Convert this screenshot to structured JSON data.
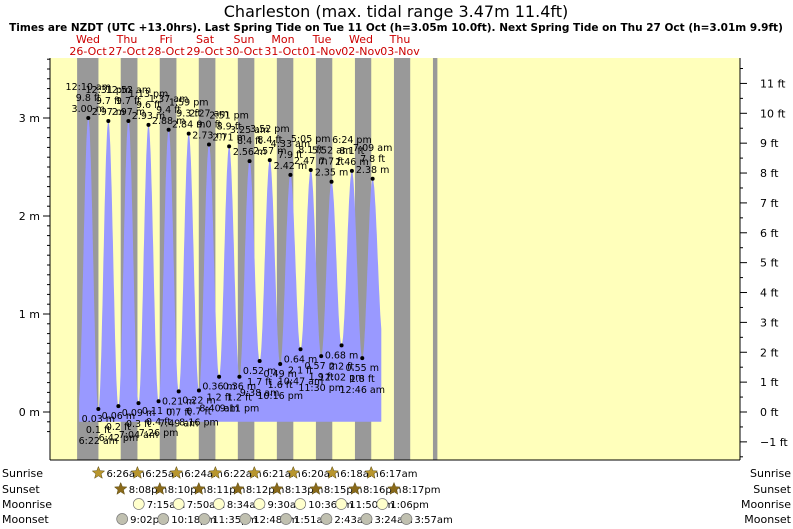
{
  "chart_data": {
    "type": "area",
    "title": "Charleston (max. tidal range 3.47m 11.4ft)",
    "subtitle": "Times are NZDT (UTC +13.0hrs). Last Spring Tide on Tue 11 Oct (h=3.05m 10.0ft). Next Spring Tide on Thu 27 Oct (h=3.01m 9.9ft)",
    "y_m_ticks": [
      "0 m",
      "1 m",
      "2 m",
      "3 m"
    ],
    "y_m_values": [
      0,
      1,
      2,
      3
    ],
    "y_ft_ticks": [
      "−1 ft",
      "0 ft",
      "1 ft",
      "2 ft",
      "3 ft",
      "4 ft",
      "5 ft",
      "6 ft",
      "7 ft",
      "8 ft",
      "9 ft",
      "10 ft",
      "11 ft"
    ],
    "y_ft_values": [
      -1,
      0,
      1,
      2,
      3,
      4,
      5,
      6,
      7,
      8,
      9,
      10,
      11
    ],
    "ylim_m": [
      -0.25,
      3.65
    ],
    "days": [
      {
        "day": "Wed",
        "date": "26-Oct",
        "t": 0
      },
      {
        "day": "Thu",
        "date": "27-Oct",
        "t": 24
      },
      {
        "day": "Fri",
        "date": "28-Oct",
        "t": 48
      },
      {
        "day": "Sat",
        "date": "29-Oct",
        "t": 72
      },
      {
        "day": "Sun",
        "date": "30-Oct",
        "t": 96
      },
      {
        "day": "Mon",
        "date": "31-Oct",
        "t": 120
      },
      {
        "day": "Tue",
        "date": "01-Nov",
        "t": 144
      },
      {
        "day": "Wed",
        "date": "02-Nov",
        "t": 168
      },
      {
        "day": "Thu",
        "date": "03-Nov",
        "t": 192
      }
    ],
    "night_bands_hours": [
      [
        -6.7,
        6.43
      ],
      [
        20.13,
        30.43
      ],
      [
        44.15,
        54.42
      ],
      [
        68.17,
        78.4
      ],
      [
        92.2,
        102.37
      ],
      [
        116.22,
        126.35
      ],
      [
        140.25,
        150.33
      ],
      [
        164.27,
        174.3
      ],
      [
        188.28,
        198.28
      ],
      [
        212.28,
        215
      ]
    ],
    "tides": [
      {
        "t": -5.95,
        "h": 0.1,
        "dot": false
      },
      {
        "t": 0.17,
        "h": 3.0,
        "dot": true,
        "time": "12:10 am",
        "ft": "9.8 ft",
        "m": "3.00 m",
        "kind": "high"
      },
      {
        "t": 6.37,
        "h": 0.03,
        "dot": true,
        "time": "6:22 am",
        "ft": "0.1 ft",
        "m": "0.03 m",
        "kind": "low"
      },
      {
        "t": 12.52,
        "h": 2.97,
        "dot": true,
        "time": "12:31 pm",
        "ft": "9.7 ft",
        "m": "2.97 m",
        "kind": "high"
      },
      {
        "t": 18.7,
        "h": 0.06,
        "dot": true,
        "time": "6:42 pm",
        "ft": "0.2 ft",
        "m": "0.06 m",
        "kind": "low"
      },
      {
        "t": 24.87,
        "h": 2.97,
        "dot": true,
        "time": "12:52 am",
        "ft": "9.7 ft",
        "m": "2.97 m",
        "kind": "high"
      },
      {
        "t": 31.07,
        "h": 0.09,
        "dot": true,
        "time": "7:04 am",
        "ft": "0.3 ft",
        "m": "0.09 m",
        "kind": "low"
      },
      {
        "t": 37.22,
        "h": 2.93,
        "dot": true,
        "time": "1:13 pm",
        "ft": "9.6 ft",
        "m": "2.93 m",
        "kind": "high"
      },
      {
        "t": 43.43,
        "h": 0.11,
        "dot": true,
        "time": "7:26 pm",
        "ft": "0.4 ft",
        "m": "0.11 m",
        "kind": "low"
      },
      {
        "t": 49.62,
        "h": 2.88,
        "dot": true,
        "time": "1:37 am",
        "ft": "9.4 ft",
        "m": "2.88 m",
        "kind": "high"
      },
      {
        "t": 55.82,
        "h": 0.21,
        "dot": true,
        "time": "7:49 am",
        "ft": "0.7 ft",
        "m": "0.21 m",
        "kind": "low"
      },
      {
        "t": 61.98,
        "h": 2.84,
        "dot": true,
        "time": "1:59 pm",
        "ft": "9.3 ft",
        "m": "2.84 m",
        "kind": "high"
      },
      {
        "t": 68.27,
        "h": 0.22,
        "dot": true,
        "time": "8:16 pm",
        "ft": "0.7 ft",
        "m": "0.22 m",
        "kind": "low"
      },
      {
        "t": 74.45,
        "h": 2.73,
        "dot": true,
        "time": "2:27 am",
        "ft": "9.0 ft",
        "m": "2.73 m",
        "kind": "high"
      },
      {
        "t": 80.67,
        "h": 0.36,
        "dot": true,
        "time": "8:40 am",
        "ft": "1.2 ft",
        "m": "0.36 m",
        "kind": "low"
      },
      {
        "t": 86.85,
        "h": 2.71,
        "dot": true,
        "time": "2:51 pm",
        "ft": "8.9 ft",
        "m": "2.71 m",
        "kind": "high"
      },
      {
        "t": 93.18,
        "h": 0.36,
        "dot": true,
        "time": "9:11 pm",
        "ft": "1.2 ft",
        "m": "0.36 m",
        "kind": "low"
      },
      {
        "t": 99.42,
        "h": 2.56,
        "dot": true,
        "time": "3:25 am",
        "ft": "8.4 ft",
        "m": "2.56 m",
        "kind": "high"
      },
      {
        "t": 105.63,
        "h": 0.52,
        "dot": true,
        "time": "9:38 am",
        "ft": "1.7 ft",
        "m": "0.52 m",
        "kind": "low"
      },
      {
        "t": 111.87,
        "h": 2.57,
        "dot": true,
        "time": "3:52 pm",
        "ft": "8.4 ft",
        "m": "2.57 m",
        "kind": "high"
      },
      {
        "t": 118.27,
        "h": 0.49,
        "dot": true,
        "time": "10:16 pm",
        "ft": "1.6 ft",
        "m": "0.49 m",
        "kind": "low"
      },
      {
        "t": 124.55,
        "h": 2.42,
        "dot": true,
        "time": "4:33 am",
        "ft": "7.9 ft",
        "m": "2.42 m",
        "kind": "high"
      },
      {
        "t": 130.78,
        "h": 0.64,
        "dot": true,
        "time": "10:47 am",
        "ft": "2.1 ft",
        "m": "0.64 m",
        "kind": "low"
      },
      {
        "t": 137.08,
        "h": 2.47,
        "dot": true,
        "time": "5:05 pm",
        "ft": "8.1 ft",
        "m": "2.47 m",
        "kind": "high"
      },
      {
        "t": 143.5,
        "h": 0.57,
        "dot": true,
        "time": "11:30 pm",
        "ft": "1.9 ft",
        "m": "0.57 m",
        "kind": "low"
      },
      {
        "t": 149.87,
        "h": 2.35,
        "dot": true,
        "time": "5:52 am",
        "ft": "7.7 ft",
        "m": "2.35 m",
        "kind": "high"
      },
      {
        "t": 156.03,
        "h": 0.68,
        "dot": true,
        "time": "12:02 pm",
        "ft": "2.2 ft",
        "m": "0.68 m",
        "kind": "low"
      },
      {
        "t": 162.4,
        "h": 2.46,
        "dot": true,
        "time": "6:24 pm",
        "ft": "8.1 ft",
        "m": "2.46 m",
        "kind": "high"
      },
      {
        "t": 168.77,
        "h": 0.55,
        "dot": true,
        "time": "12:46 am",
        "ft": "1.8 ft",
        "m": "0.55 m",
        "kind": "low"
      },
      {
        "t": 175.15,
        "h": 2.38,
        "dot": true,
        "time": "7:09 am",
        "ft": "7.8 ft",
        "m": "2.38 m",
        "kind": "high"
      },
      {
        "t": 181.5,
        "h": 0.75,
        "dot": false
      }
    ],
    "curve_t_range": [
      -5.5,
      180.5
    ],
    "events": {
      "row_labels": [
        "Sunrise",
        "Sunset",
        "Moonrise",
        "Moonset"
      ],
      "sunrise": [
        {
          "t": 6.43,
          "label": "6:26am"
        },
        {
          "t": 30.42,
          "label": "6:25am"
        },
        {
          "t": 54.4,
          "label": "6:24am"
        },
        {
          "t": 78.37,
          "label": "6:22am"
        },
        {
          "t": 102.35,
          "label": "6:21am"
        },
        {
          "t": 126.33,
          "label": "6:20am"
        },
        {
          "t": 150.3,
          "label": "6:18am"
        },
        {
          "t": 174.28,
          "label": "6:17am"
        }
      ],
      "sunset": [
        {
          "t": 20.13,
          "label": "8:08pm"
        },
        {
          "t": 44.17,
          "label": "8:10pm"
        },
        {
          "t": 68.18,
          "label": "8:11pm"
        },
        {
          "t": 92.2,
          "label": "8:12pm"
        },
        {
          "t": 116.22,
          "label": "8:13pm"
        },
        {
          "t": 140.25,
          "label": "8:15pm"
        },
        {
          "t": 164.27,
          "label": "8:16pm"
        },
        {
          "t": 188.28,
          "label": "8:17pm"
        }
      ],
      "moonrise": [
        {
          "t": 31.25,
          "label": "7:15am"
        },
        {
          "t": 55.83,
          "label": "7:50am"
        },
        {
          "t": 80.57,
          "label": "8:34am"
        },
        {
          "t": 105.5,
          "label": "9:30am"
        },
        {
          "t": 130.6,
          "label": "10:36am"
        },
        {
          "t": 155.83,
          "label": "11:50am"
        },
        {
          "t": 181.1,
          "label": "1:06pm"
        }
      ],
      "moonset": [
        {
          "t": 21.03,
          "label": "9:02pm"
        },
        {
          "t": 46.3,
          "label": "10:18pm"
        },
        {
          "t": 71.58,
          "label": "11:35pm"
        },
        {
          "t": 96.8,
          "label": "12:48am"
        },
        {
          "t": 121.85,
          "label": "1:51am"
        },
        {
          "t": 146.72,
          "label": "2:43am"
        },
        {
          "t": 171.4,
          "label": "3:24am"
        },
        {
          "t": 195.95,
          "label": "3:57am"
        }
      ]
    },
    "colors": {
      "water": "#9999ff",
      "day": "#ffffbb",
      "night": "#999999",
      "day_text": "#cc0000",
      "star": "#b8962e",
      "star_sunset": "#8a6a1a",
      "moon_rise": "#ffffcc",
      "moon_set": "#c0c0b0"
    }
  }
}
